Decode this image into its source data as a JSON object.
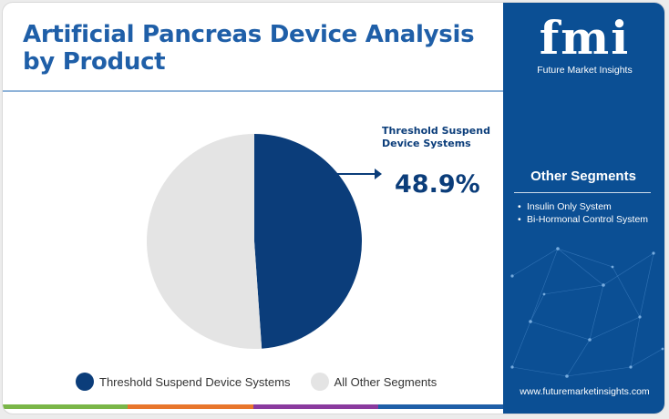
{
  "title_lines": [
    "Artificial Pancreas Device Analysis",
    "by Product"
  ],
  "callout": {
    "label_lines": [
      "Threshold Suspend",
      "Device Systems"
    ],
    "value_text": "48.9%"
  },
  "chart_data": {
    "type": "pie",
    "title": "Artificial Pancreas Device Analysis by Product",
    "slices": [
      {
        "label": "Threshold Suspend Device Systems",
        "value": 48.9,
        "color": "#0b3d7a"
      },
      {
        "label": "All Other Segments",
        "value": 51.1,
        "color": "#e4e4e4"
      }
    ],
    "legend_position": "bottom"
  },
  "legend": [
    {
      "label": "Threshold Suspend Device Systems",
      "color": "#0b3d7a"
    },
    {
      "label": "All Other Segments",
      "color": "#e4e4e4"
    }
  ],
  "side_panel": {
    "logo_mark": "fmi",
    "logo_sub": "Future Market Insights",
    "segments_heading": "Other Segments",
    "segments": [
      "Insulin Only System",
      "Bi-Hormonal Control System"
    ],
    "website": "www.futuremarketinsights.com",
    "background_color": "#0b4f94"
  },
  "bottom_strip_colors": [
    "#7ab648",
    "#e8762c",
    "#8a3a9e",
    "#1f5fa8"
  ]
}
